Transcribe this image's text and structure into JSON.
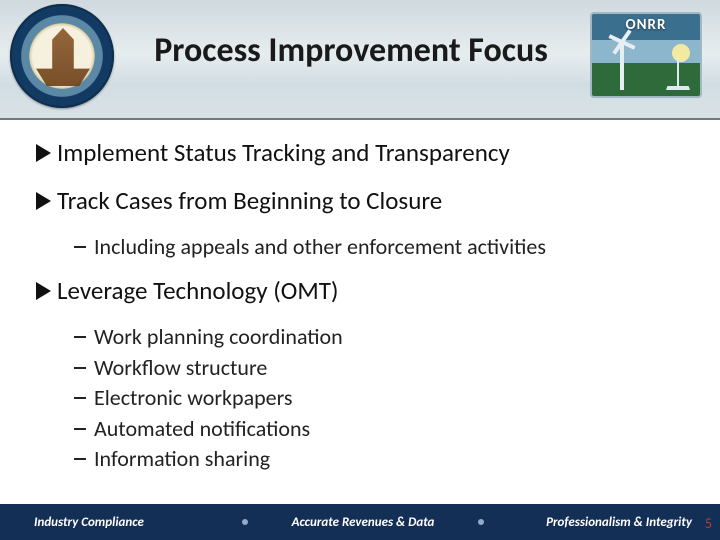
{
  "colors": {
    "title_text": "#1a1a1a",
    "body_text": "#111111",
    "sub_text": "#222222",
    "footer_bg": "#142f56",
    "footer_text": "#ffffff",
    "footer_sep": "#94a9c5",
    "pagenum": "#c0392b",
    "header_gradient": [
      "#cfd9de",
      "#e6edef",
      "#d2dde3",
      "#d8e2e6"
    ]
  },
  "typography": {
    "title_fontsize_pt": 26,
    "bullet1_fontsize_pt": 19,
    "bullet2_fontsize_pt": 17,
    "footer_fontsize_pt": 10,
    "font_family": "Calibri"
  },
  "header": {
    "title": "Process Improvement Focus",
    "onrr_label": "ONRR"
  },
  "content": {
    "items": [
      {
        "text": "Implement Status Tracking and Transparency",
        "sub": []
      },
      {
        "text": "Track Cases from Beginning to Closure",
        "sub": [
          "Including appeals and other enforcement activities"
        ]
      },
      {
        "text": "Leverage Technology (OMT)",
        "sub": [
          "Work planning coordination",
          "Workflow structure",
          "Electronic workpapers",
          "Automated notifications",
          "Information sharing"
        ]
      }
    ]
  },
  "footer": {
    "left": "Industry Compliance",
    "center": "Accurate Revenues & Data",
    "right": "Professionalism & Integrity",
    "page_number": "5"
  }
}
